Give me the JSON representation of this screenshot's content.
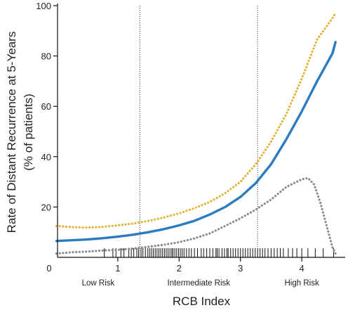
{
  "chart_data": {
    "type": "line",
    "xlabel": "RCB Index",
    "ylabel_lines": [
      "Rate of Distant Recurrence at 5-Years",
      "(% of patients)"
    ],
    "xlim": [
      0,
      4.7
    ],
    "ylim": [
      0,
      100
    ],
    "x_ticks": [
      0,
      1,
      2,
      3,
      4
    ],
    "y_ticks": [
      20,
      40,
      60,
      80,
      100
    ],
    "grid": false,
    "thresholds": [
      1.36,
      3.28
    ],
    "risk_zones": [
      {
        "label": "Low Risk",
        "x": 0.68
      },
      {
        "label": "Intermediate Risk",
        "x": 2.32
      },
      {
        "label": "High Risk",
        "x": 4.0
      }
    ],
    "series": [
      {
        "color": "#E0B43A",
        "style": "dotted",
        "x": [
          0,
          0.25,
          0.5,
          0.75,
          1.0,
          1.25,
          1.5,
          1.75,
          2.0,
          2.25,
          2.5,
          2.75,
          3.0,
          3.25,
          3.5,
          3.75,
          4.0,
          4.25,
          4.5,
          4.55
        ],
        "values": [
          12.5,
          12.0,
          11.8,
          12.1,
          12.7,
          13.4,
          14.5,
          15.8,
          17.5,
          19.5,
          22.0,
          25.5,
          30.0,
          37.0,
          46.0,
          57.0,
          71.0,
          86.5,
          95.0,
          97.0
        ]
      },
      {
        "color": "#2B7BBF",
        "style": "solid",
        "x": [
          0,
          0.25,
          0.5,
          0.75,
          1.0,
          1.25,
          1.5,
          1.75,
          2.0,
          2.25,
          2.5,
          2.75,
          3.0,
          3.25,
          3.5,
          3.75,
          4.0,
          4.25,
          4.5,
          4.55
        ],
        "values": [
          6.5,
          6.8,
          7.1,
          7.6,
          8.2,
          9.0,
          10.0,
          11.2,
          12.7,
          14.5,
          17.0,
          20.0,
          24.0,
          29.5,
          37.0,
          47.0,
          58.0,
          70.0,
          81.0,
          85.5
        ]
      },
      {
        "color": "#8A8A8A",
        "style": "dotted",
        "x": [
          0,
          0.25,
          0.5,
          0.75,
          1.0,
          1.25,
          1.5,
          1.75,
          2.0,
          2.25,
          2.5,
          2.75,
          3.0,
          3.25,
          3.5,
          3.75,
          4.0,
          4.1,
          4.2,
          4.3,
          4.4,
          4.5,
          4.55
        ],
        "values": [
          1.5,
          2.0,
          2.3,
          2.7,
          3.0,
          3.5,
          4.2,
          5.0,
          6.0,
          7.5,
          9.5,
          12.5,
          15.5,
          19.0,
          23.0,
          28.0,
          31.0,
          31.5,
          29.0,
          22.0,
          13.0,
          4.0,
          1.5
        ]
      }
    ],
    "rug_x": [
      0.78,
      0.92,
      0.97,
      1.05,
      1.1,
      1.18,
      1.22,
      1.26,
      1.31,
      1.34,
      1.38,
      1.41,
      1.45,
      1.49,
      1.52,
      1.55,
      1.58,
      1.61,
      1.64,
      1.67,
      1.7,
      1.73,
      1.76,
      1.79,
      1.82,
      1.85,
      1.88,
      1.9,
      1.93,
      1.96,
      1.99,
      2.02,
      2.05,
      2.08,
      2.12,
      2.16,
      2.2,
      2.25,
      2.3,
      2.36,
      2.4,
      2.45,
      2.5,
      2.55,
      2.6,
      2.62,
      2.65,
      2.7,
      2.74,
      2.78,
      2.8,
      2.84,
      2.88,
      2.92,
      2.96,
      3.0,
      3.04,
      3.08,
      3.12,
      3.16,
      3.2,
      3.24,
      3.28,
      3.32,
      3.36,
      3.4,
      3.45,
      3.5,
      3.55,
      3.6,
      3.65,
      3.7,
      3.78,
      3.85,
      3.92,
      4.0,
      4.1,
      4.22,
      4.35,
      4.52
    ]
  }
}
